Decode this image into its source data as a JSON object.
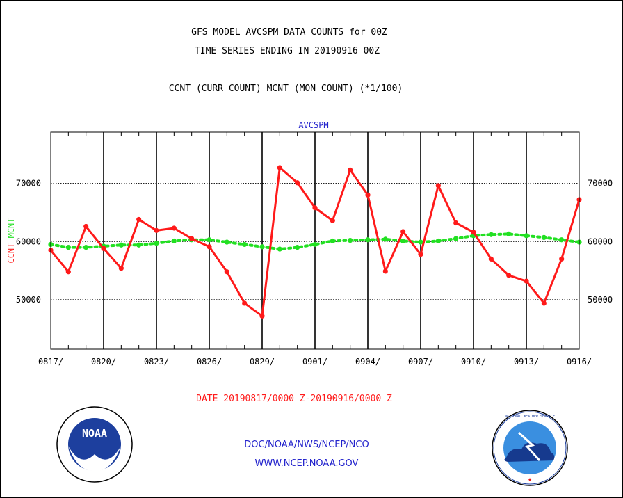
{
  "header": {
    "line1": "GFS MODEL AVCSPM DATA COUNTS for 00Z",
    "line2": "TIME SERIES ENDING IN 20190916 00Z",
    "line3": "CCNT (CURR COUNT) MCNT (MON COUNT) (*1/100)"
  },
  "footer": {
    "date_range": "DATE 20190817/0000 Z-20190916/0000 Z",
    "org_line": "DOC/NOAA/NWS/NCEP/NCO",
    "url_line": "WWW.NCEP.NOAA.GOV"
  },
  "logos": {
    "left": "NOAA",
    "right": "NATIONAL WEATHER SERVICE"
  },
  "colors": {
    "ccnt": "#ff1a1a",
    "mcnt": "#22e022",
    "title": "#2222cc",
    "axis": "#000000"
  },
  "chart_data": {
    "type": "line",
    "title": "AVCSPM",
    "ylabel_parts": [
      "CCNT",
      "MCNT"
    ],
    "xlim": [
      0,
      30
    ],
    "ylim": [
      41500,
      78800
    ],
    "x_tick_positions": [
      0,
      3,
      6,
      9,
      12,
      15,
      18,
      21,
      24,
      27,
      30
    ],
    "x_tick_labels": [
      "0817/",
      "0820/",
      "0823/",
      "0826/",
      "0829/",
      "0901/",
      "0904/",
      "0907/",
      "0910/",
      "0913/",
      "0916/"
    ],
    "y_ticks": [
      50000,
      60000,
      70000
    ],
    "y_tick_labels": [
      "50000",
      "60000",
      "70000"
    ],
    "series": [
      {
        "name": "CCNT",
        "values": [
          58500,
          54800,
          62600,
          58800,
          55400,
          63800,
          61900,
          62300,
          60500,
          59100,
          54800,
          49400,
          47200,
          72700,
          70100,
          65800,
          63600,
          72300,
          68000,
          54900,
          61700,
          57800,
          69600,
          63200,
          61600,
          57000,
          54200,
          53200,
          49400,
          57000,
          67200
        ]
      },
      {
        "name": "MCNT",
        "values": [
          59500,
          59000,
          59000,
          59200,
          59400,
          59400,
          59700,
          60100,
          60300,
          60300,
          59900,
          59500,
          59100,
          58700,
          59000,
          59500,
          60100,
          60200,
          60300,
          60400,
          60100,
          59900,
          60100,
          60500,
          61000,
          61200,
          61300,
          61000,
          60700,
          60300,
          59900
        ]
      }
    ]
  }
}
